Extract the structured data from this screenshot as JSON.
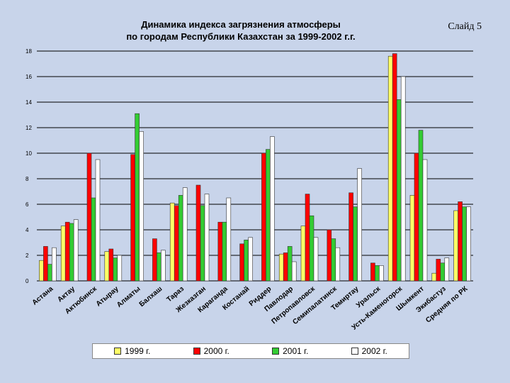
{
  "slide": {
    "label": "Слайд 5"
  },
  "chart_data": {
    "type": "bar",
    "title": "Динамика индекса загрязнения атмосферы\nпо городам Республики Казахстан за 1999-2002 г.г.",
    "xlabel": "",
    "ylabel": "",
    "ylim": [
      0,
      18
    ],
    "yticks": [
      0,
      2,
      4,
      6,
      8,
      10,
      12,
      14,
      16,
      18
    ],
    "grid": true,
    "legend_position": "bottom",
    "categories": [
      "Астана",
      "Актау",
      "Актюбинск",
      "Атырау",
      "Алматы",
      "Балхаш",
      "Тараз",
      "Жезказган",
      "Караганда",
      "Костанай",
      "Риддер",
      "Павлодар",
      "Петропавловск",
      "Семипалатинск",
      "Темиртау",
      "Уральск",
      "Усть-Каменогорск",
      "Шымкент",
      "Экибастуз",
      "Средняя по РК"
    ],
    "series": [
      {
        "name": "1999 г.",
        "color": "#ffff66",
        "values": [
          1.6,
          4.3,
          0,
          2.3,
          0,
          0,
          6.1,
          0,
          0,
          0,
          0,
          2.1,
          4.3,
          0,
          0,
          0,
          17.6,
          6.7,
          0.6,
          5.5
        ]
      },
      {
        "name": "2000 г.",
        "color": "#ff0000",
        "values": [
          2.7,
          4.6,
          10.0,
          2.5,
          9.9,
          3.3,
          5.9,
          7.5,
          4.6,
          2.9,
          10.0,
          2.2,
          6.8,
          4.0,
          6.9,
          1.4,
          17.8,
          10.0,
          1.7,
          6.2
        ]
      },
      {
        "name": "2001 г.",
        "color": "#33cc33",
        "values": [
          1.3,
          4.5,
          6.5,
          1.8,
          13.1,
          2.2,
          6.7,
          5.9,
          4.6,
          3.2,
          10.3,
          2.7,
          5.1,
          3.3,
          5.8,
          1.2,
          14.2,
          11.8,
          1.4,
          5.8
        ]
      },
      {
        "name": "2002 г.",
        "color": "#ffffff",
        "values": [
          2.6,
          4.8,
          9.5,
          2.0,
          11.7,
          2.4,
          7.3,
          6.8,
          6.5,
          3.4,
          11.3,
          1.5,
          3.4,
          2.6,
          8.8,
          1.2,
          16.0,
          9.5,
          1.8,
          5.8
        ]
      }
    ]
  }
}
